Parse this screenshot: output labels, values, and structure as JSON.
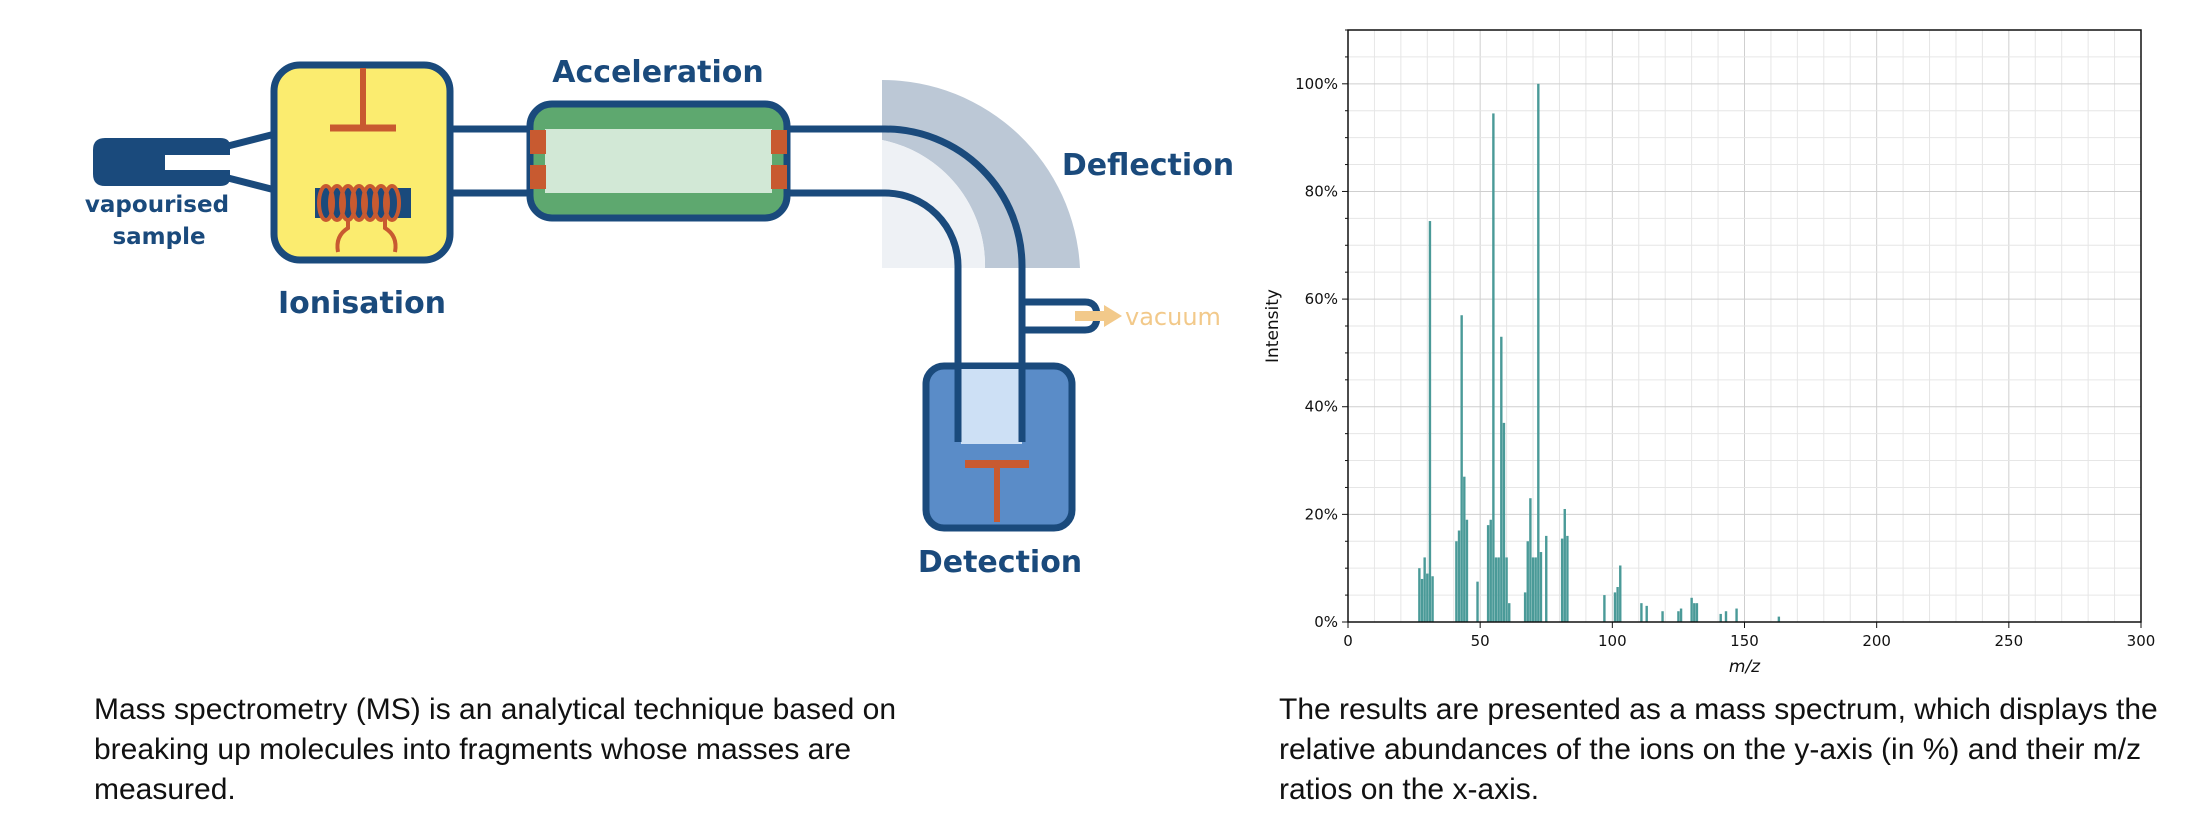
{
  "diagram": {
    "labels": {
      "sample": [
        "vapourised",
        "sample"
      ],
      "ionisation": "Ionisation",
      "acceleration": "Acceleration",
      "deflection": "Deflection",
      "detection": "Detection",
      "vacuum": "vacuum"
    },
    "colors": {
      "outline": "#1a4a7c",
      "ionisation_fill": "#fbec6f",
      "acceleration_outer": "#5ea86f",
      "acceleration_inner": "#d2e8d6",
      "electrode": "#c85a30",
      "magnet": "#bcc8d6",
      "detector_fill": "#5a8cc8",
      "detector_light": "#cde0f5",
      "vacuum_arrow": "#f2c98a"
    }
  },
  "captions": {
    "left": "Mass spectrometry (MS) is an analytical technique based on breaking up molecules into fragments whose masses are measured.",
    "right": "The results are presented as a mass spectrum, which displays the relative abundances of the ions on the y-axis (in %) and their m/z ratios on the x-axis."
  },
  "chart_data": {
    "type": "bar",
    "title": "",
    "xlabel": "m/z",
    "ylabel": "Intensity",
    "xlim": [
      0,
      300
    ],
    "ylim": [
      0,
      110
    ],
    "xticks": [
      0,
      50,
      100,
      150,
      200,
      250,
      300
    ],
    "yticks": [
      0,
      20,
      40,
      60,
      80,
      100
    ],
    "ytick_labels": [
      "0%",
      "20%",
      "40%",
      "60%",
      "80%",
      "100%"
    ],
    "grid": true,
    "bar_color": "#4a9a98",
    "x": [
      27,
      28,
      29,
      30,
      31,
      32,
      41,
      42,
      43,
      44,
      45,
      49,
      53,
      54,
      55,
      56,
      57,
      58,
      59,
      60,
      61,
      67,
      68,
      69,
      70,
      71,
      72,
      73,
      75,
      81,
      82,
      83,
      97,
      101,
      102,
      103,
      111,
      113,
      119,
      125,
      126,
      130,
      131,
      132,
      141,
      143,
      147,
      163
    ],
    "values": [
      10,
      8,
      12,
      9,
      74.5,
      8.5,
      15,
      17,
      57,
      27,
      19,
      7.5,
      18,
      19,
      94.5,
      12,
      12,
      53,
      37,
      12,
      3.5,
      5.5,
      15,
      23,
      12,
      12,
      100,
      13,
      16,
      15.5,
      21,
      16,
      5,
      5.5,
      6.5,
      10.5,
      3.5,
      3,
      2,
      2,
      2.5,
      4.5,
      3.5,
      3.5,
      1.5,
      2,
      2.5,
      1
    ]
  }
}
